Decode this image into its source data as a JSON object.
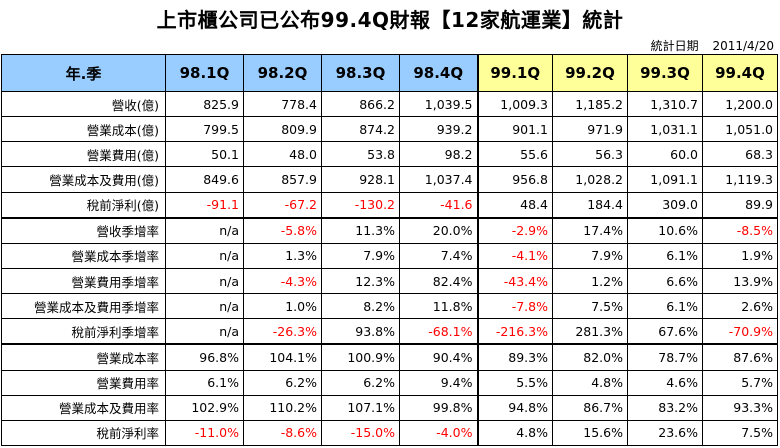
{
  "header": {
    "title": "上市櫃公司已公布99.4Q財報【12家航運業】統計",
    "date_label": "統計日期",
    "date_value": "2011/4/20"
  },
  "table": {
    "corner": "年.季",
    "columns": [
      "98.1Q",
      "98.2Q",
      "98.3Q",
      "98.4Q",
      "99.1Q",
      "99.2Q",
      "99.3Q",
      "99.4Q"
    ],
    "highlight_columns_from": 4,
    "colors": {
      "header_blue": "#99ccff",
      "header_yellow": "#ffff99",
      "negative": "#ff0000"
    },
    "rows": [
      {
        "label": "營收(億)",
        "values": [
          "825.9",
          "778.4",
          "866.2",
          "1,039.5",
          "1,009.3",
          "1,185.2",
          "1,310.7",
          "1,200.0"
        ]
      },
      {
        "label": "營業成本(億)",
        "values": [
          "799.5",
          "809.9",
          "874.2",
          "939.2",
          "901.1",
          "971.9",
          "1,031.1",
          "1,051.0"
        ]
      },
      {
        "label": "營業費用(億)",
        "values": [
          "50.1",
          "48.0",
          "53.8",
          "98.2",
          "55.6",
          "56.3",
          "60.0",
          "68.3"
        ]
      },
      {
        "label": "營業成本及費用(億)",
        "values": [
          "849.6",
          "857.9",
          "928.1",
          "1,037.4",
          "956.8",
          "1,028.2",
          "1,091.1",
          "1,119.3"
        ]
      },
      {
        "label": "稅前淨利(億)",
        "values": [
          "-91.1",
          "-67.2",
          "-130.2",
          "-41.6",
          "48.4",
          "184.4",
          "309.0",
          "89.9"
        ]
      },
      {
        "label": "營收季增率",
        "values": [
          "n/a",
          "-5.8%",
          "11.3%",
          "20.0%",
          "-2.9%",
          "17.4%",
          "10.6%",
          "-8.5%"
        ]
      },
      {
        "label": "營業成本季增率",
        "values": [
          "n/a",
          "1.3%",
          "7.9%",
          "7.4%",
          "-4.1%",
          "7.9%",
          "6.1%",
          "1.9%"
        ]
      },
      {
        "label": "營業費用季增率",
        "values": [
          "n/a",
          "-4.3%",
          "12.3%",
          "82.4%",
          "-43.4%",
          "1.2%",
          "6.6%",
          "13.9%"
        ]
      },
      {
        "label": "營業成本及費用季增率",
        "values": [
          "n/a",
          "1.0%",
          "8.2%",
          "11.8%",
          "-7.8%",
          "7.5%",
          "6.1%",
          "2.6%"
        ]
      },
      {
        "label": "稅前淨利季增率",
        "values": [
          "n/a",
          "-26.3%",
          "93.8%",
          "-68.1%",
          "-216.3%",
          "281.3%",
          "67.6%",
          "-70.9%"
        ]
      },
      {
        "label": "營業成本率",
        "values": [
          "96.8%",
          "104.1%",
          "100.9%",
          "90.4%",
          "89.3%",
          "82.0%",
          "78.7%",
          "87.6%"
        ]
      },
      {
        "label": "營業費用率",
        "values": [
          "6.1%",
          "6.2%",
          "6.2%",
          "9.4%",
          "5.5%",
          "4.8%",
          "4.6%",
          "5.7%"
        ]
      },
      {
        "label": "營業成本及費用率",
        "values": [
          "102.9%",
          "110.2%",
          "107.1%",
          "99.8%",
          "94.8%",
          "86.7%",
          "83.2%",
          "93.3%"
        ]
      },
      {
        "label": "稅前淨利率",
        "values": [
          "-11.0%",
          "-8.6%",
          "-15.0%",
          "-4.0%",
          "4.8%",
          "15.6%",
          "23.6%",
          "7.5%"
        ]
      }
    ]
  }
}
